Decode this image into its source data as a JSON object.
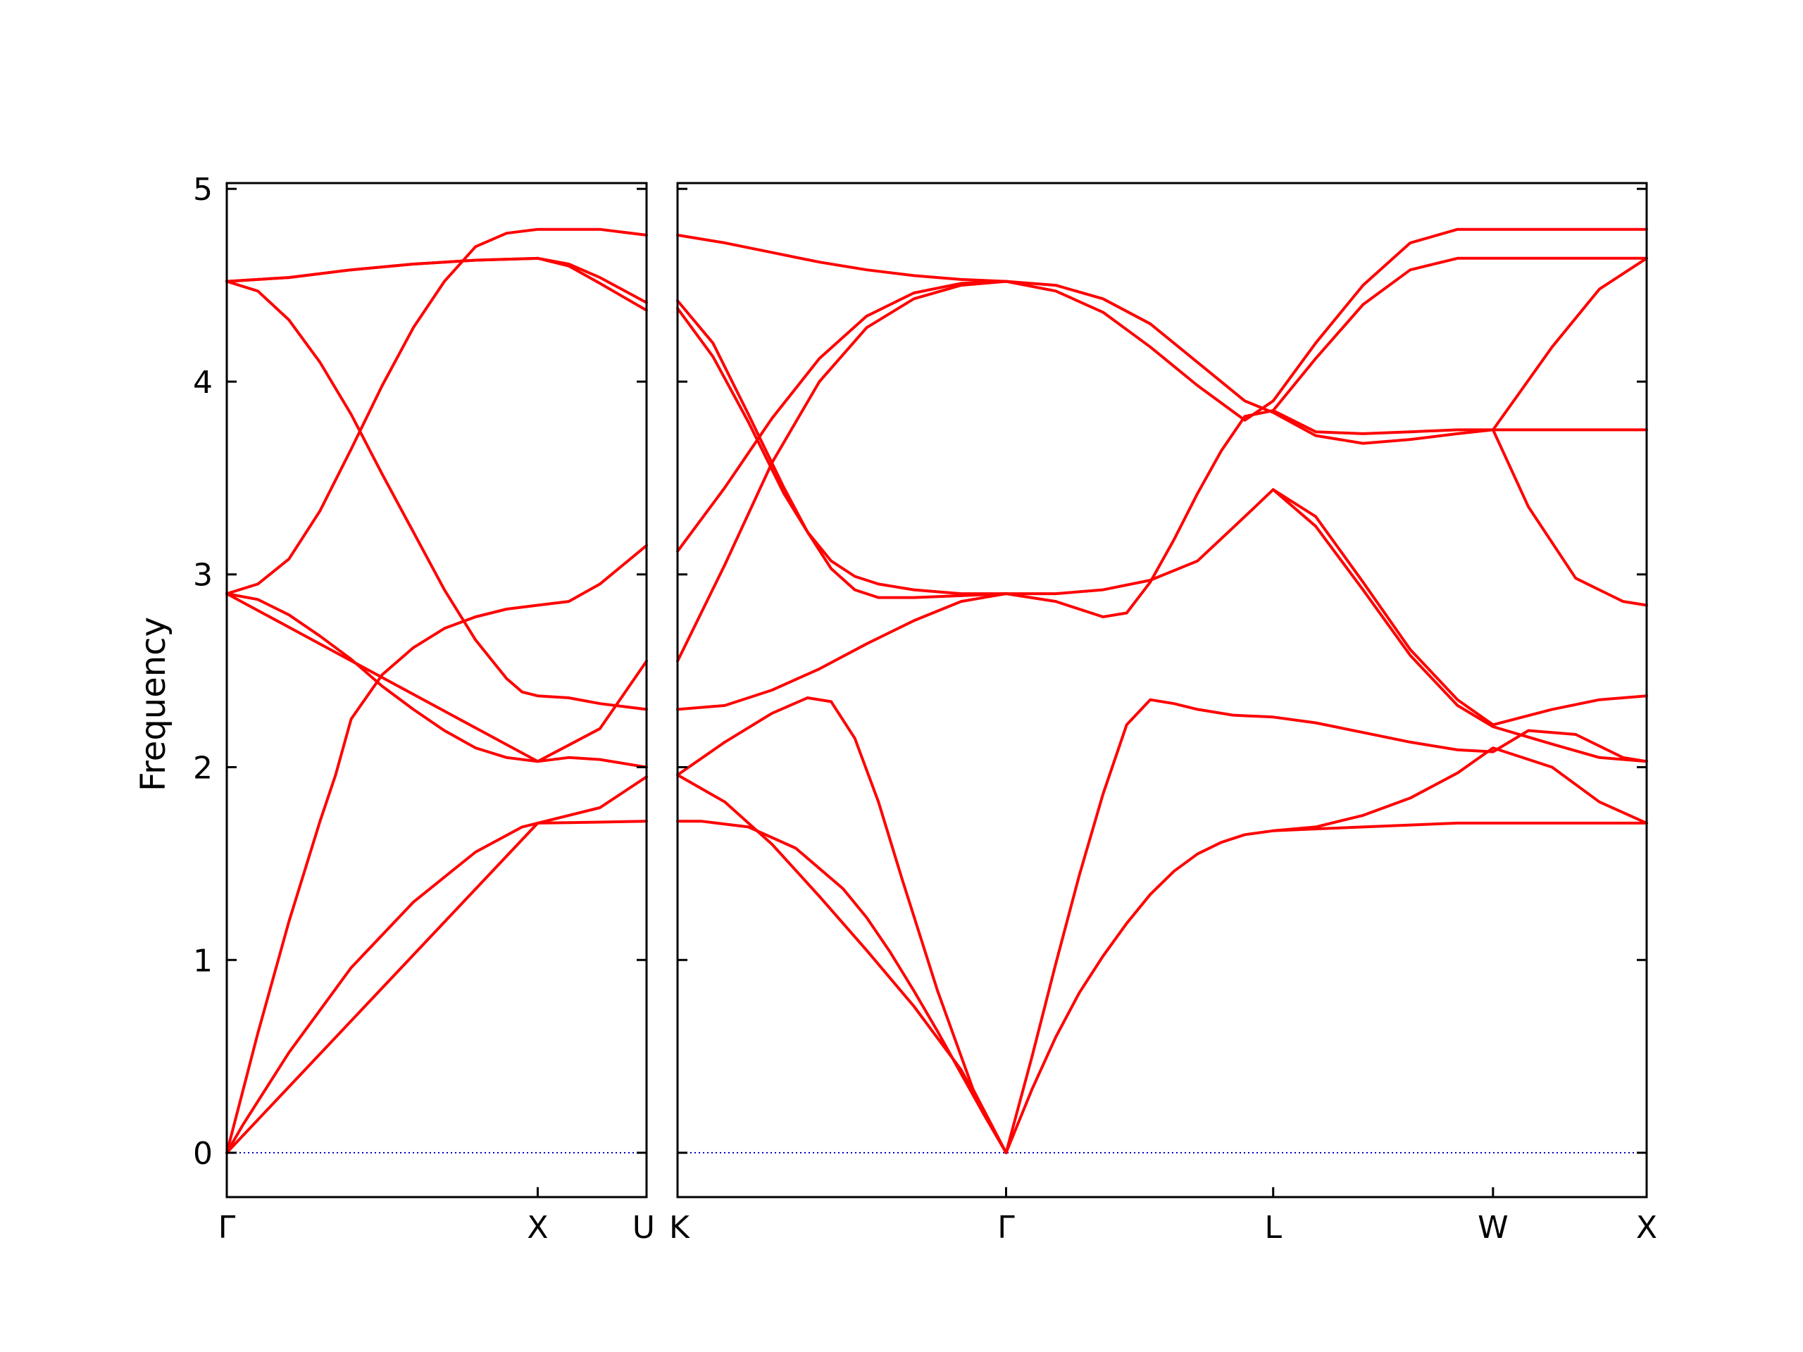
{
  "chart_data": {
    "type": "line",
    "ylabel": "Frequency",
    "ylim": [
      -0.23,
      5.03
    ],
    "yticks": [
      0,
      1,
      2,
      3,
      4,
      5
    ],
    "colors": {
      "bands": "#ff0000",
      "zero_line": "#0000cc",
      "axes": "#000000"
    },
    "panels": [
      {
        "name": "left-panel",
        "x_range": [
          0,
          1.35
        ],
        "high_symmetry_points": [
          {
            "label": "Γ",
            "x": 0
          },
          {
            "label": "X",
            "x": 1.0
          },
          {
            "label": "U",
            "x": 1.35
          }
        ],
        "zero_line": true,
        "bands": [
          {
            "name": "band-1",
            "x": [
              0,
              0.05,
              0.2,
              0.4,
              0.6,
              0.8,
              0.95,
              1.0,
              1.1,
              1.2,
              1.35
            ],
            "y": [
              0,
              0.14,
              0.52,
              0.96,
              1.3,
              1.56,
              1.69,
              1.71,
              1.712,
              1.715,
              1.72
            ]
          },
          {
            "name": "band-2",
            "x": [
              0,
              0.1,
              0.2,
              0.3,
              0.35,
              0.4,
              0.5,
              0.6,
              0.7,
              0.8,
              0.9,
              1.0,
              1.1,
              1.2,
              1.35
            ],
            "y": [
              0,
              0.62,
              1.2,
              1.72,
              1.96,
              2.25,
              2.48,
              2.62,
              2.72,
              2.78,
              2.82,
              2.84,
              2.86,
              2.95,
              3.15
            ]
          },
          {
            "name": "band-3",
            "x": [
              0,
              1.0,
              1.2,
              1.35
            ],
            "y": [
              0,
              1.71,
              1.79,
              1.95
            ]
          },
          {
            "name": "band-4",
            "x": [
              0,
              0.1,
              0.2,
              0.3,
              0.4,
              0.5,
              0.6,
              0.7,
              0.8,
              0.9,
              1.0,
              1.1,
              1.2,
              1.35
            ],
            "y": [
              2.9,
              2.87,
              2.79,
              2.68,
              2.56,
              2.42,
              2.3,
              2.19,
              2.1,
              2.05,
              2.03,
              2.05,
              2.04,
              2.0
            ]
          },
          {
            "name": "band-5",
            "x": [
              0,
              1.0,
              1.2,
              1.35
            ],
            "y": [
              2.9,
              2.03,
              2.2,
              2.55
            ]
          },
          {
            "name": "band-6",
            "x": [
              0,
              0.1,
              0.2,
              0.3,
              0.4,
              0.5,
              0.6,
              0.7,
              0.8,
              0.9,
              0.95,
              1.0,
              1.1,
              1.2,
              1.35
            ],
            "y": [
              4.52,
              4.47,
              4.32,
              4.1,
              3.83,
              3.52,
              3.22,
              2.92,
              2.66,
              2.46,
              2.39,
              2.37,
              2.36,
              2.33,
              2.3
            ]
          },
          {
            "name": "band-7",
            "x": [
              0,
              0.1,
              0.2,
              0.3,
              0.4,
              0.5,
              0.6,
              0.7,
              0.8,
              0.9,
              1.0,
              1.1,
              1.2,
              1.35
            ],
            "y": [
              2.9,
              2.95,
              3.08,
              3.33,
              3.65,
              3.98,
              4.28,
              4.52,
              4.7,
              4.77,
              4.79,
              4.79,
              4.79,
              4.76
            ]
          },
          {
            "name": "band-8",
            "x": [
              0,
              0.2,
              0.4,
              0.6,
              0.8,
              1.0,
              1.1,
              1.2,
              1.35
            ],
            "y": [
              4.52,
              4.54,
              4.58,
              4.61,
              4.63,
              4.64,
              4.61,
              4.54,
              4.41
            ]
          },
          {
            "name": "band-9",
            "x": [
              0,
              0.2,
              0.4,
              0.6,
              0.8,
              1.0,
              1.1,
              1.2,
              1.35
            ],
            "y": [
              4.52,
              4.54,
              4.58,
              4.61,
              4.63,
              4.64,
              4.6,
              4.51,
              4.37
            ]
          }
        ]
      },
      {
        "name": "right-panel",
        "x_range": [
          0,
          4.1
        ],
        "high_symmetry_points": [
          {
            "label": "K",
            "x": 0
          },
          {
            "label": "Γ",
            "x": 1.39
          },
          {
            "label": "L",
            "x": 2.52
          },
          {
            "label": "W",
            "x": 3.45
          },
          {
            "label": "X",
            "x": 4.1
          }
        ],
        "zero_line": true,
        "bands": [
          {
            "name": "band-1",
            "x": [
              0,
              0.2,
              0.4,
              0.6,
              0.8,
              1.0,
              1.2,
              1.39
            ],
            "y": [
              1.96,
              1.82,
              1.6,
              1.33,
              1.05,
              0.76,
              0.43,
              0
            ]
          },
          {
            "name": "band-2",
            "x": [
              0,
              0.1,
              0.3,
              0.5,
              0.7,
              0.8,
              0.9,
              1.0,
              1.1,
              1.2,
              1.3,
              1.39
            ],
            "y": [
              1.72,
              1.72,
              1.69,
              1.58,
              1.37,
              1.22,
              1.04,
              0.84,
              0.63,
              0.41,
              0.19,
              0
            ]
          },
          {
            "name": "band-3",
            "x": [
              0,
              0.2,
              0.4,
              0.55,
              0.65,
              0.75,
              0.85,
              0.95,
              1.1,
              1.25,
              1.39
            ],
            "y": [
              1.96,
              2.13,
              2.28,
              2.36,
              2.34,
              2.15,
              1.82,
              1.42,
              0.84,
              0.33,
              0
            ]
          },
          {
            "name": "band-4",
            "x": [
              1.39,
              1.5,
              1.6,
              1.7,
              1.8,
              1.9,
              2.0,
              2.1,
              2.2,
              2.3,
              2.4,
              2.52,
              2.7,
              2.9,
              3.1,
              3.3,
              3.45,
              3.7,
              3.9,
              4.1
            ],
            "y": [
              0,
              0.33,
              0.6,
              0.83,
              1.02,
              1.19,
              1.34,
              1.46,
              1.55,
              1.61,
              1.65,
              1.67,
              1.68,
              1.69,
              1.7,
              1.71,
              1.71,
              1.71,
              1.71,
              1.71
            ]
          },
          {
            "name": "band-5",
            "x": [
              1.39,
              1.5,
              1.6,
              1.7,
              1.8,
              1.9,
              2.0,
              2.1,
              2.2,
              2.35,
              2.52,
              2.7,
              2.9,
              3.1,
              3.3,
              3.45,
              3.6,
              3.8,
              4.0,
              4.1
            ],
            "y": [
              0,
              0.5,
              0.98,
              1.44,
              1.86,
              2.22,
              2.35,
              2.33,
              2.3,
              2.27,
              2.26,
              2.23,
              2.18,
              2.13,
              2.09,
              2.08,
              2.19,
              2.17,
              2.05,
              2.03
            ]
          },
          {
            "name": "band-6",
            "x": [
              2.52,
              2.7,
              2.9,
              3.1,
              3.3,
              3.45,
              3.7,
              3.9,
              4.1
            ],
            "y": [
              1.67,
              1.69,
              1.75,
              1.84,
              1.97,
              2.1,
              2.0,
              1.82,
              1.71
            ]
          },
          {
            "name": "band-7",
            "x": [
              0,
              0.2,
              0.4,
              0.6,
              0.8,
              1.0,
              1.2,
              1.39
            ],
            "y": [
              2.3,
              2.32,
              2.4,
              2.51,
              2.64,
              2.76,
              2.86,
              2.9
            ]
          },
          {
            "name": "band-8",
            "x": [
              1.39,
              1.6,
              1.8,
              2.0,
              2.2,
              2.4,
              2.52,
              2.7,
              2.9,
              3.1,
              3.3,
              3.45,
              3.7,
              3.9,
              4.1
            ],
            "y": [
              2.9,
              2.9,
              2.92,
              2.97,
              3.07,
              3.3,
              3.44,
              3.3,
              2.96,
              2.61,
              2.35,
              2.22,
              2.3,
              2.35,
              2.37
            ]
          },
          {
            "name": "band-9",
            "x": [
              1.39,
              1.6,
              1.8,
              1.9,
              2.0,
              2.1,
              2.2,
              2.3,
              2.4,
              2.52,
              2.7,
              2.9,
              3.1,
              3.3,
              3.45,
              3.7,
              3.9,
              4.1
            ],
            "y": [
              2.9,
              2.86,
              2.78,
              2.8,
              2.96,
              3.18,
              3.42,
              3.64,
              3.82,
              3.85,
              3.74,
              3.73,
              3.74,
              3.75,
              3.75,
              4.18,
              4.48,
              4.64
            ]
          },
          {
            "name": "band-10",
            "x": [
              2.52,
              2.7,
              2.9,
              3.1,
              3.3,
              3.45,
              3.7,
              3.9,
              4.1
            ],
            "y": [
              3.44,
              3.25,
              2.92,
              2.58,
              2.32,
              2.21,
              2.12,
              2.05,
              2.03
            ]
          },
          {
            "name": "band-11",
            "x": [
              0,
              0.2,
              0.4,
              0.6,
              0.8,
              1.0,
              1.2,
              1.39
            ],
            "y": [
              3.12,
              3.45,
              3.81,
              4.12,
              4.34,
              4.46,
              4.51,
              4.52
            ]
          },
          {
            "name": "band-12",
            "x": [
              0,
              0.2,
              0.4,
              0.6,
              0.8,
              1.0,
              1.2,
              1.39
            ],
            "y": [
              2.55,
              3.05,
              3.58,
              4.0,
              4.28,
              4.43,
              4.5,
              4.52
            ]
          },
          {
            "name": "band-13",
            "x": [
              0,
              0.15,
              0.3,
              0.45,
              0.55,
              0.65,
              0.75,
              0.85,
              1.0,
              1.2,
              1.39
            ],
            "y": [
              4.42,
              4.2,
              3.83,
              3.45,
              3.22,
              3.03,
              2.92,
              2.88,
              2.88,
              2.89,
              2.9
            ]
          },
          {
            "name": "band-14",
            "x": [
              0,
              0.15,
              0.3,
              0.45,
              0.55,
              0.65,
              0.75,
              0.85,
              1.0,
              1.2,
              1.39
            ],
            "y": [
              4.38,
              4.13,
              3.79,
              3.42,
              3.22,
              3.07,
              2.99,
              2.95,
              2.92,
              2.9,
              2.9
            ]
          },
          {
            "name": "band-15",
            "x": [
              1.39,
              1.6,
              1.8,
              2.0,
              2.2,
              2.4,
              2.52,
              2.7,
              2.9,
              3.1,
              3.3,
              3.45,
              3.7,
              3.9,
              4.1
            ],
            "y": [
              4.52,
              4.5,
              4.43,
              4.3,
              4.1,
              3.9,
              3.84,
              3.72,
              3.68,
              3.7,
              3.73,
              3.75,
              3.75,
              3.75,
              3.75
            ]
          },
          {
            "name": "band-16",
            "x": [
              1.39,
              1.6,
              1.8,
              2.0,
              2.2,
              2.4,
              2.52,
              2.7,
              2.9,
              3.1,
              3.3,
              3.45,
              3.7,
              3.9,
              4.1
            ],
            "y": [
              4.52,
              4.47,
              4.36,
              4.18,
              3.98,
              3.8,
              3.9,
              4.2,
              4.5,
              4.72,
              4.79,
              4.79,
              4.79,
              4.79,
              4.79
            ]
          },
          {
            "name": "band-17",
            "x": [
              2.52,
              2.7,
              2.9,
              3.1,
              3.3,
              3.45,
              3.7,
              3.9,
              4.1
            ],
            "y": [
              3.85,
              4.12,
              4.4,
              4.58,
              4.64,
              4.64,
              4.64,
              4.64,
              4.64
            ]
          },
          {
            "name": "band-18",
            "x": [
              0,
              0.2,
              0.4,
              0.6,
              0.8,
              1.0,
              1.2,
              1.39
            ],
            "y": [
              4.76,
              4.72,
              4.67,
              4.62,
              4.58,
              4.55,
              4.53,
              4.52
            ]
          },
          {
            "name": "band-19",
            "x": [
              3.45,
              3.6,
              3.8,
              4.0,
              4.1
            ],
            "y": [
              3.75,
              3.35,
              2.98,
              2.86,
              2.84
            ]
          }
        ]
      }
    ]
  }
}
